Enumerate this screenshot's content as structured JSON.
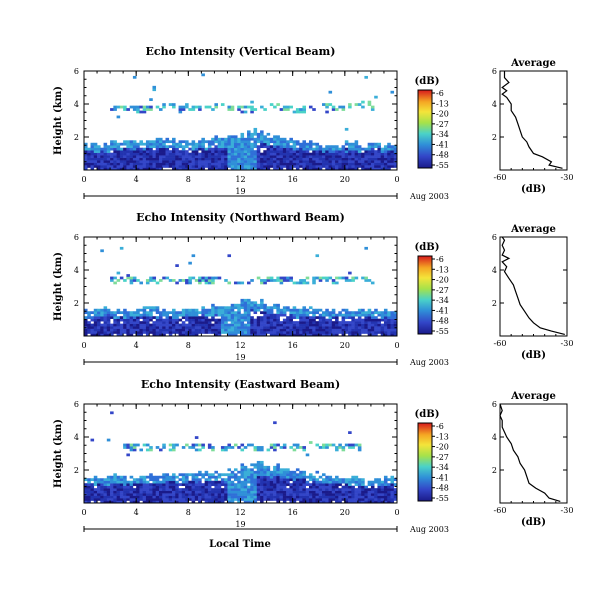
{
  "colorbar": {
    "unit": "(dB)",
    "ticks": [
      "-6",
      "-13",
      "-20",
      "-27",
      "-34",
      "-41",
      "-48",
      "-55"
    ],
    "colors": [
      "#d7191c",
      "#f5a623",
      "#f4e43a",
      "#a6e24a",
      "#4ad2c8",
      "#2f8fd8",
      "#3346c8",
      "#1a1a8a"
    ]
  },
  "layout_text": {
    "xlabel": "Local Time",
    "date": "Aug 2003",
    "day": "19",
    "ylabel": "Height (km)",
    "avg_title": "Average",
    "avg_xlabel": "(dB)"
  },
  "chart_data": [
    {
      "type": "heatmap",
      "title": "Echo Intensity (Vertical Beam)",
      "xlabel": "Local Time",
      "ylabel": "Height (km)",
      "x_ticks": [
        "0",
        "4",
        "8",
        "12",
        "16",
        "20",
        "0"
      ],
      "y_ticks": [
        "2",
        "4",
        "6"
      ],
      "xlim": [
        0,
        24
      ],
      "ylim": [
        0,
        6
      ],
      "layers": [
        {
          "from": 0,
          "to": 24,
          "top": [
            1.6,
            1.5,
            1.6,
            1.7,
            1.7,
            1.8,
            1.8,
            1.7,
            1.7,
            1.8,
            1.9,
            2.0,
            2.2,
            2.3,
            2.0,
            1.8,
            1.7,
            1.6,
            1.5,
            1.5,
            1.6,
            1.5,
            1.6,
            1.5,
            1.6
          ],
          "low_dense": 1.0
        },
        {
          "from": 2,
          "to": 22,
          "top": [
            3.7,
            3.7,
            3.6,
            3.7,
            3.8,
            3.6,
            3.7,
            3.7,
            3.8,
            3.7,
            3.6,
            3.7,
            3.8,
            3.7,
            3.6,
            3.7,
            3.8,
            3.7,
            3.8,
            3.9,
            3.7
          ],
          "sparse": true
        }
      ],
      "hot_spot": {
        "x": 12,
        "y": 1.8
      },
      "average": {
        "title": "Average",
        "xlabel": "(dB)",
        "x_ticks": [
          "-60",
          "-30"
        ],
        "xlim": [
          -60,
          -30
        ],
        "y_ticks": [
          "2",
          "4",
          "6"
        ],
        "profile": [
          [
            -32,
            0.1
          ],
          [
            -38,
            0.3
          ],
          [
            -37,
            0.5
          ],
          [
            -41,
            0.8
          ],
          [
            -45,
            1.0
          ],
          [
            -47,
            1.4
          ],
          [
            -48,
            1.7
          ],
          [
            -50,
            2.0
          ],
          [
            -51,
            2.4
          ],
          [
            -52,
            2.8
          ],
          [
            -53,
            3.2
          ],
          [
            -55,
            3.6
          ],
          [
            -55,
            4.0
          ],
          [
            -57,
            4.4
          ],
          [
            -59,
            4.6
          ],
          [
            -57,
            4.8
          ],
          [
            -59,
            5.0
          ],
          [
            -56,
            5.3
          ],
          [
            -58,
            5.6
          ],
          [
            -58,
            6.0
          ]
        ]
      }
    },
    {
      "type": "heatmap",
      "title": "Echo Intensity (Northward Beam)",
      "xlabel": "Local Time",
      "ylabel": "Height (km)",
      "x_ticks": [
        "0",
        "4",
        "8",
        "12",
        "16",
        "20",
        "0"
      ],
      "y_ticks": [
        "2",
        "4",
        "6"
      ],
      "xlim": [
        0,
        24
      ],
      "ylim": [
        0,
        6
      ],
      "layers": [
        {
          "from": 0,
          "to": 24,
          "top": [
            1.5,
            1.6,
            1.5,
            1.5,
            1.6,
            1.6,
            1.5,
            1.5,
            1.6,
            1.7,
            1.7,
            1.8,
            2.1,
            2.0,
            1.8,
            1.7,
            1.6,
            1.6,
            1.5,
            1.6,
            1.5,
            1.5,
            1.4,
            1.5,
            1.4
          ],
          "low_dense": 0.7
        },
        {
          "from": 2,
          "to": 22,
          "top": [
            3.3,
            3.3,
            3.2,
            3.3,
            3.4,
            3.2,
            3.3,
            3.3,
            3.4,
            3.3,
            3.2,
            3.3,
            3.4,
            3.3,
            3.2,
            3.3,
            3.4,
            3.3,
            3.4,
            3.4,
            3.3
          ],
          "sparse": true
        }
      ],
      "hot_spot": {
        "x": 11.5,
        "y": 1.8
      },
      "average": {
        "title": "Average",
        "xlabel": "(dB)",
        "x_ticks": [
          "-60",
          "-30"
        ],
        "xlim": [
          -60,
          -30
        ],
        "y_ticks": [
          "2",
          "4",
          "6"
        ],
        "profile": [
          [
            -31,
            0.1
          ],
          [
            -37,
            0.3
          ],
          [
            -42,
            0.5
          ],
          [
            -45,
            0.8
          ],
          [
            -47,
            1.1
          ],
          [
            -49,
            1.5
          ],
          [
            -51,
            1.9
          ],
          [
            -52,
            2.3
          ],
          [
            -53,
            2.7
          ],
          [
            -54,
            3.1
          ],
          [
            -56,
            3.5
          ],
          [
            -58,
            3.9
          ],
          [
            -57,
            4.2
          ],
          [
            -59,
            4.5
          ],
          [
            -56,
            4.7
          ],
          [
            -59,
            4.9
          ],
          [
            -58,
            5.2
          ],
          [
            -59,
            5.5
          ],
          [
            -58,
            5.8
          ],
          [
            -59,
            6.0
          ]
        ]
      }
    },
    {
      "type": "heatmap",
      "title": "Echo Intensity (Eastward Beam)",
      "xlabel": "Local Time",
      "ylabel": "Height (km)",
      "x_ticks": [
        "0",
        "4",
        "8",
        "12",
        "16",
        "20",
        "0"
      ],
      "y_ticks": [
        "2",
        "4",
        "6"
      ],
      "xlim": [
        0,
        24
      ],
      "ylim": [
        0,
        6
      ],
      "layers": [
        {
          "from": 0,
          "to": 24,
          "top": [
            1.5,
            1.5,
            1.6,
            1.5,
            1.6,
            1.6,
            1.7,
            1.6,
            1.7,
            1.8,
            1.8,
            1.9,
            2.2,
            2.3,
            2.2,
            2.0,
            1.9,
            1.7,
            1.6,
            1.5,
            1.5,
            1.4,
            1.4,
            1.5,
            1.4
          ],
          "low_dense": 0.8
        },
        {
          "from": 3,
          "to": 21,
          "top": [
            3.3,
            3.3,
            3.2,
            3.3,
            3.4,
            3.3,
            3.3,
            3.2,
            3.4,
            3.3,
            3.2,
            3.3,
            3.4,
            3.3,
            3.5,
            3.4,
            3.3,
            3.4,
            3.3
          ],
          "sparse": true
        }
      ],
      "hot_spot": {
        "x": 12,
        "y": 1.9
      },
      "average": {
        "title": "Average",
        "xlabel": "(dB)",
        "x_ticks": [
          "-60",
          "-30"
        ],
        "xlim": [
          -60,
          -30
        ],
        "y_ticks": [
          "2",
          "4",
          "6"
        ],
        "profile": [
          [
            -33,
            0.1
          ],
          [
            -38,
            0.3
          ],
          [
            -40,
            0.6
          ],
          [
            -44,
            0.9
          ],
          [
            -47,
            1.2
          ],
          [
            -48,
            1.6
          ],
          [
            -49,
            2.0
          ],
          [
            -51,
            2.4
          ],
          [
            -52,
            2.8
          ],
          [
            -54,
            3.2
          ],
          [
            -55,
            3.6
          ],
          [
            -57,
            4.0
          ],
          [
            -58,
            4.3
          ],
          [
            -59,
            4.6
          ],
          [
            -59,
            5.0
          ],
          [
            -60,
            5.3
          ],
          [
            -59,
            5.6
          ],
          [
            -60,
            6.0
          ]
        ]
      }
    }
  ]
}
